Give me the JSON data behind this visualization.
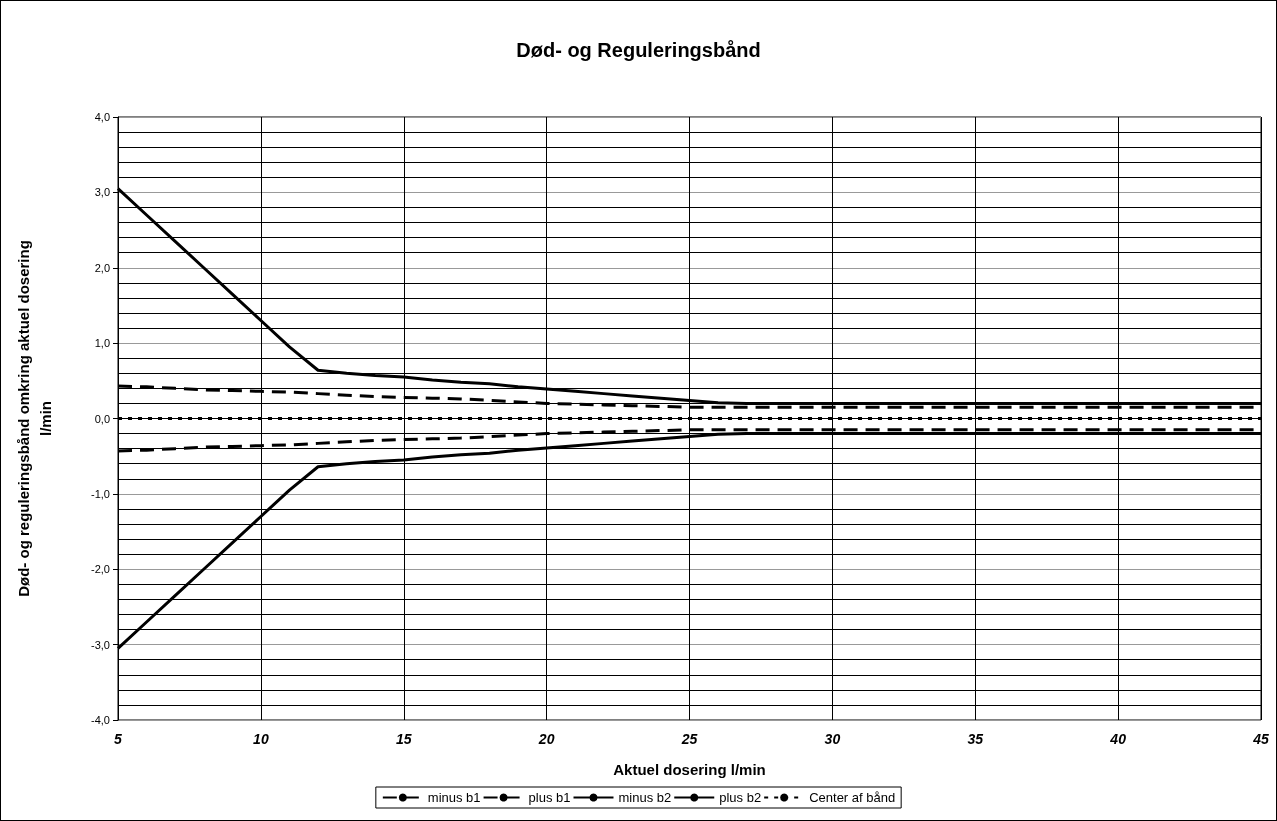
{
  "chart_data": {
    "type": "line",
    "title": "Død- og Reguleringsbånd",
    "xlabel": "Aktuel dosering l/min",
    "ylabel": "Død- og reguleringsbånd omkring aktuel dosering\nl/min",
    "x": [
      5,
      6,
      7,
      8,
      9,
      10,
      11,
      12,
      13,
      14,
      15,
      16,
      17,
      18,
      19,
      20,
      21,
      22,
      23,
      24,
      25,
      26,
      27,
      45
    ],
    "series": [
      {
        "name": "minus b1",
        "color": "#000000",
        "line_style": "dashed",
        "values": [
          -0.43,
          -0.42,
          -0.4,
          -0.38,
          -0.37,
          -0.36,
          -0.35,
          -0.33,
          -0.31,
          -0.29,
          -0.28,
          -0.27,
          -0.26,
          -0.24,
          -0.22,
          -0.2,
          -0.19,
          -0.18,
          -0.17,
          -0.16,
          -0.15,
          -0.15,
          -0.15,
          -0.15
        ]
      },
      {
        "name": "plus b1",
        "color": "#000000",
        "line_style": "dashed",
        "values": [
          0.43,
          0.42,
          0.4,
          0.38,
          0.37,
          0.36,
          0.35,
          0.33,
          0.31,
          0.29,
          0.28,
          0.27,
          0.26,
          0.24,
          0.22,
          0.2,
          0.19,
          0.18,
          0.17,
          0.16,
          0.15,
          0.15,
          0.15,
          0.15
        ]
      },
      {
        "name": "minus b2",
        "color": "#000000",
        "line_style": "solid",
        "values": [
          -3.05,
          -2.7,
          -2.35,
          -2.0,
          -1.65,
          -1.3,
          -0.95,
          -0.64,
          -0.6,
          -0.57,
          -0.55,
          -0.51,
          -0.48,
          -0.46,
          -0.42,
          -0.39,
          -0.36,
          -0.33,
          -0.3,
          -0.27,
          -0.24,
          -0.21,
          -0.2,
          -0.2
        ]
      },
      {
        "name": "plus b2",
        "color": "#000000",
        "line_style": "solid",
        "values": [
          3.05,
          2.7,
          2.35,
          2.0,
          1.65,
          1.3,
          0.95,
          0.64,
          0.6,
          0.57,
          0.55,
          0.51,
          0.48,
          0.46,
          0.42,
          0.39,
          0.36,
          0.33,
          0.3,
          0.27,
          0.24,
          0.21,
          0.2,
          0.2
        ]
      },
      {
        "name": "Center af bånd",
        "color": "#000000",
        "line_style": "dotted",
        "values": [
          0,
          0,
          0,
          0,
          0,
          0,
          0,
          0,
          0,
          0,
          0,
          0,
          0,
          0,
          0,
          0,
          0,
          0,
          0,
          0,
          0,
          0,
          0,
          0
        ]
      }
    ],
    "xlim": [
      5,
      45
    ],
    "xticks": [
      5,
      10,
      15,
      20,
      25,
      30,
      35,
      40,
      45
    ],
    "ylim": [
      -4,
      4
    ],
    "yticks": [
      {
        "value": -4,
        "label": "-4,0"
      },
      {
        "value": -3,
        "label": "-3,0"
      },
      {
        "value": -2,
        "label": "-2,0"
      },
      {
        "value": -1,
        "label": "-1,0"
      },
      {
        "value": 0,
        "label": "0,0"
      },
      {
        "value": 1,
        "label": "1,0"
      },
      {
        "value": 2,
        "label": "2,0"
      },
      {
        "value": 3,
        "label": "3,0"
      },
      {
        "value": 4,
        "label": "4,0"
      }
    ],
    "grid": true,
    "legend": "bottom",
    "marker": "none"
  }
}
